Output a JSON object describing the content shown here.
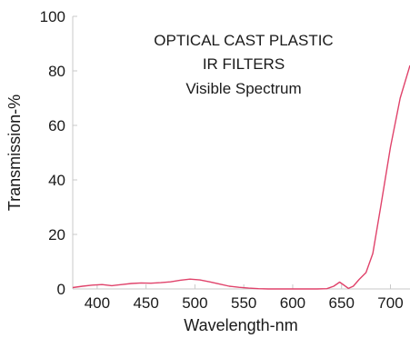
{
  "chart_data": {
    "type": "line",
    "title_lines": [
      "OPTICAL CAST PLASTIC",
      "IR FILTERS",
      "Visible Spectrum"
    ],
    "xlabel": "Wavelength-nm",
    "ylabel": "Transmission-%",
    "xlim": [
      375,
      720
    ],
    "ylim": [
      0,
      100
    ],
    "x_ticks": [
      400,
      450,
      500,
      550,
      600,
      650,
      700
    ],
    "y_ticks": [
      0,
      20,
      40,
      60,
      80,
      100
    ],
    "grid": false,
    "line_color": "#e0436b",
    "series": [
      {
        "x": [
          375,
          385,
          395,
          405,
          415,
          425,
          435,
          445,
          455,
          465,
          475,
          485,
          495,
          505,
          515,
          525,
          535,
          545,
          555,
          565,
          575,
          585,
          595,
          605,
          615,
          625,
          635,
          642,
          648,
          652,
          657,
          662,
          668,
          675,
          682,
          690,
          700,
          710,
          720
        ],
        "y": [
          0.5,
          1.0,
          1.4,
          1.6,
          1.2,
          1.6,
          2.0,
          2.2,
          2.1,
          2.3,
          2.6,
          3.2,
          3.6,
          3.3,
          2.6,
          1.8,
          1.0,
          0.6,
          0.3,
          0.1,
          0.0,
          0.0,
          0.0,
          0.0,
          0.0,
          0.0,
          0.1,
          1.0,
          2.5,
          1.5,
          0.2,
          1.0,
          3.5,
          6.0,
          13.0,
          30.0,
          52.0,
          70.0,
          82.0
        ]
      }
    ]
  }
}
